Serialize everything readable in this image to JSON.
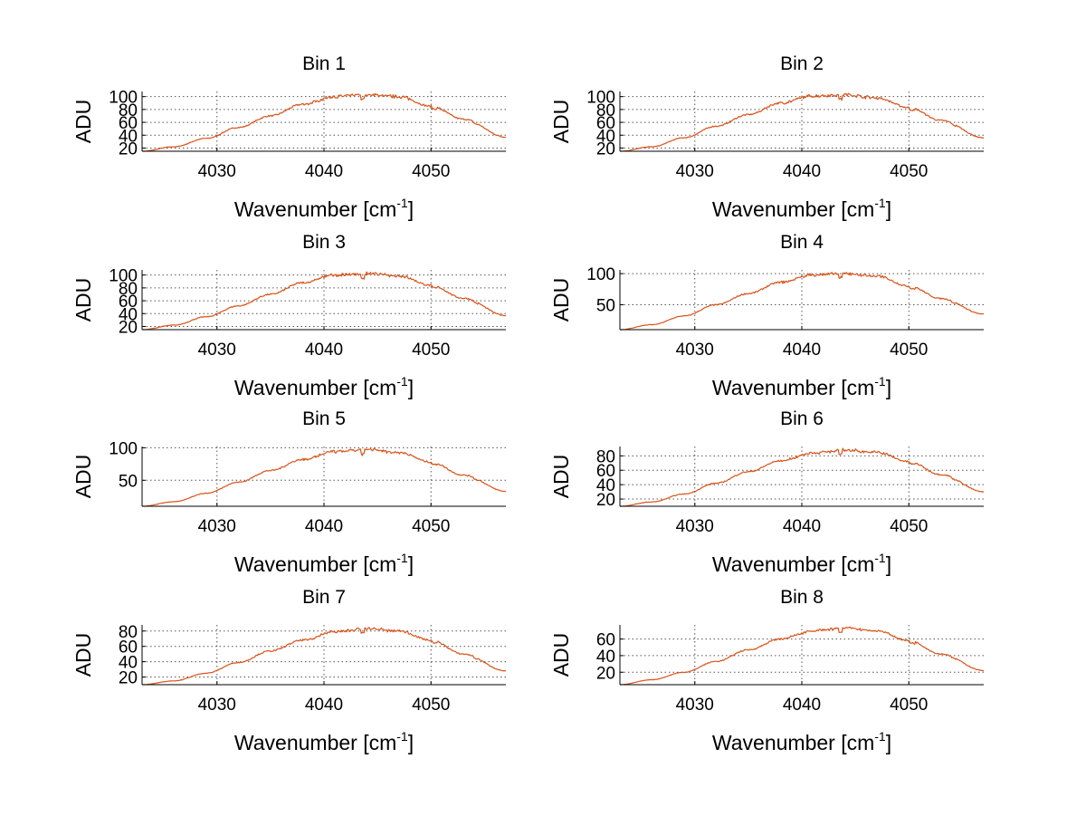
{
  "colors": {
    "series": "#d95319",
    "background": "#ffffff"
  },
  "chart_data": [
    {
      "type": "line",
      "title": "Bin 1",
      "xlabel": "Wavenumber [cm",
      "xlabel_sup": "-1",
      "xlabel_close": "]",
      "ylabel": "ADU",
      "xlim": [
        4023,
        4057
      ],
      "ylim": [
        15,
        108
      ],
      "xticks": [
        4030,
        4040,
        4050
      ],
      "yticks": [
        20,
        40,
        60,
        80,
        100
      ],
      "series": [
        {
          "name": "Bin 1",
          "x": [
            4023,
            4026,
            4029,
            4032,
            4035,
            4038,
            4041,
            4044,
            4047,
            4050,
            4053,
            4057
          ],
          "values": [
            15,
            22,
            35,
            52,
            70,
            88,
            100,
            103,
            100,
            85,
            65,
            37
          ]
        }
      ]
    },
    {
      "type": "line",
      "title": "Bin 2",
      "xlabel": "Wavenumber [cm",
      "xlabel_sup": "-1",
      "xlabel_close": "]",
      "ylabel": "ADU",
      "xlim": [
        4023,
        4057
      ],
      "ylim": [
        15,
        108
      ],
      "xticks": [
        4030,
        4040,
        4050
      ],
      "yticks": [
        20,
        40,
        60,
        80,
        100
      ],
      "series": [
        {
          "name": "Bin 2",
          "x": [
            4023,
            4026,
            4029,
            4032,
            4035,
            4038,
            4041,
            4044,
            4047,
            4050,
            4053,
            4057
          ],
          "values": [
            15,
            22,
            36,
            54,
            72,
            90,
            101,
            103,
            98,
            83,
            63,
            36
          ]
        }
      ]
    },
    {
      "type": "line",
      "title": "Bin 3",
      "xlabel": "Wavenumber [cm",
      "xlabel_sup": "-1",
      "xlabel_close": "]",
      "ylabel": "ADU",
      "xlim": [
        4023,
        4057
      ],
      "ylim": [
        15,
        108
      ],
      "xticks": [
        4030,
        4040,
        4050
      ],
      "yticks": [
        20,
        40,
        60,
        80,
        100
      ],
      "series": [
        {
          "name": "Bin 3",
          "x": [
            4023,
            4026,
            4029,
            4032,
            4035,
            4038,
            4041,
            4044,
            4047,
            4050,
            4053,
            4057
          ],
          "values": [
            15,
            22,
            35,
            52,
            70,
            88,
            100,
            102,
            99,
            84,
            64,
            37
          ]
        }
      ]
    },
    {
      "type": "line",
      "title": "Bin 4",
      "xlabel": "Wavenumber [cm",
      "xlabel_sup": "-1",
      "xlabel_close": "]",
      "ylabel": "ADU",
      "xlim": [
        4023,
        4057
      ],
      "ylim": [
        10,
        106
      ],
      "xticks": [
        4030,
        4040,
        4050
      ],
      "yticks": [
        50,
        100
      ],
      "series": [
        {
          "name": "Bin 4",
          "x": [
            4023,
            4026,
            4029,
            4032,
            4035,
            4038,
            4041,
            4044,
            4047,
            4050,
            4053,
            4057
          ],
          "values": [
            10,
            18,
            32,
            50,
            68,
            86,
            98,
            100,
            96,
            80,
            60,
            35
          ]
        }
      ]
    },
    {
      "type": "line",
      "title": "Bin 5",
      "xlabel": "Wavenumber [cm",
      "xlabel_sup": "-1",
      "xlabel_close": "]",
      "ylabel": "ADU",
      "xlim": [
        4023,
        4057
      ],
      "ylim": [
        10,
        102
      ],
      "xticks": [
        4030,
        4040,
        4050
      ],
      "yticks": [
        50,
        100
      ],
      "series": [
        {
          "name": "Bin 5",
          "x": [
            4023,
            4026,
            4029,
            4032,
            4035,
            4038,
            4041,
            4044,
            4047,
            4050,
            4053,
            4057
          ],
          "values": [
            10,
            17,
            30,
            47,
            65,
            82,
            94,
            97,
            93,
            78,
            58,
            33
          ]
        }
      ]
    },
    {
      "type": "line",
      "title": "Bin 6",
      "xlabel": "Wavenumber [cm",
      "xlabel_sup": "-1",
      "xlabel_close": "]",
      "ylabel": "ADU",
      "xlim": [
        4023,
        4057
      ],
      "ylim": [
        10,
        93
      ],
      "xticks": [
        4030,
        4040,
        4050
      ],
      "yticks": [
        20,
        40,
        60,
        80
      ],
      "series": [
        {
          "name": "Bin 6",
          "x": [
            4023,
            4026,
            4029,
            4032,
            4035,
            4038,
            4041,
            4044,
            4047,
            4050,
            4053,
            4057
          ],
          "values": [
            10,
            16,
            27,
            42,
            58,
            73,
            84,
            88,
            85,
            72,
            54,
            30
          ]
        }
      ]
    },
    {
      "type": "line",
      "title": "Bin 7",
      "xlabel": "Wavenumber [cm",
      "xlabel_sup": "-1",
      "xlabel_close": "]",
      "ylabel": "ADU",
      "xlim": [
        4023,
        4057
      ],
      "ylim": [
        10,
        88
      ],
      "xticks": [
        4030,
        4040,
        4050
      ],
      "yticks": [
        20,
        40,
        60,
        80
      ],
      "series": [
        {
          "name": "Bin 7",
          "x": [
            4023,
            4026,
            4029,
            4032,
            4035,
            4038,
            4041,
            4044,
            4047,
            4050,
            4053,
            4057
          ],
          "values": [
            10,
            15,
            25,
            39,
            54,
            68,
            79,
            83,
            80,
            68,
            50,
            28
          ]
        }
      ]
    },
    {
      "type": "line",
      "title": "Bin 8",
      "xlabel": "Wavenumber [cm",
      "xlabel_sup": "-1",
      "xlabel_close": "]",
      "ylabel": "ADU",
      "xlim": [
        4023,
        4057
      ],
      "ylim": [
        5,
        77
      ],
      "xticks": [
        4030,
        4040,
        4050
      ],
      "yticks": [
        20,
        40,
        60
      ],
      "series": [
        {
          "name": "Bin 8",
          "x": [
            4023,
            4026,
            4029,
            4032,
            4035,
            4038,
            4041,
            4044,
            4047,
            4050,
            4053,
            4057
          ],
          "values": [
            5,
            11,
            20,
            33,
            47,
            60,
            70,
            73,
            70,
            58,
            42,
            22
          ]
        }
      ]
    }
  ]
}
